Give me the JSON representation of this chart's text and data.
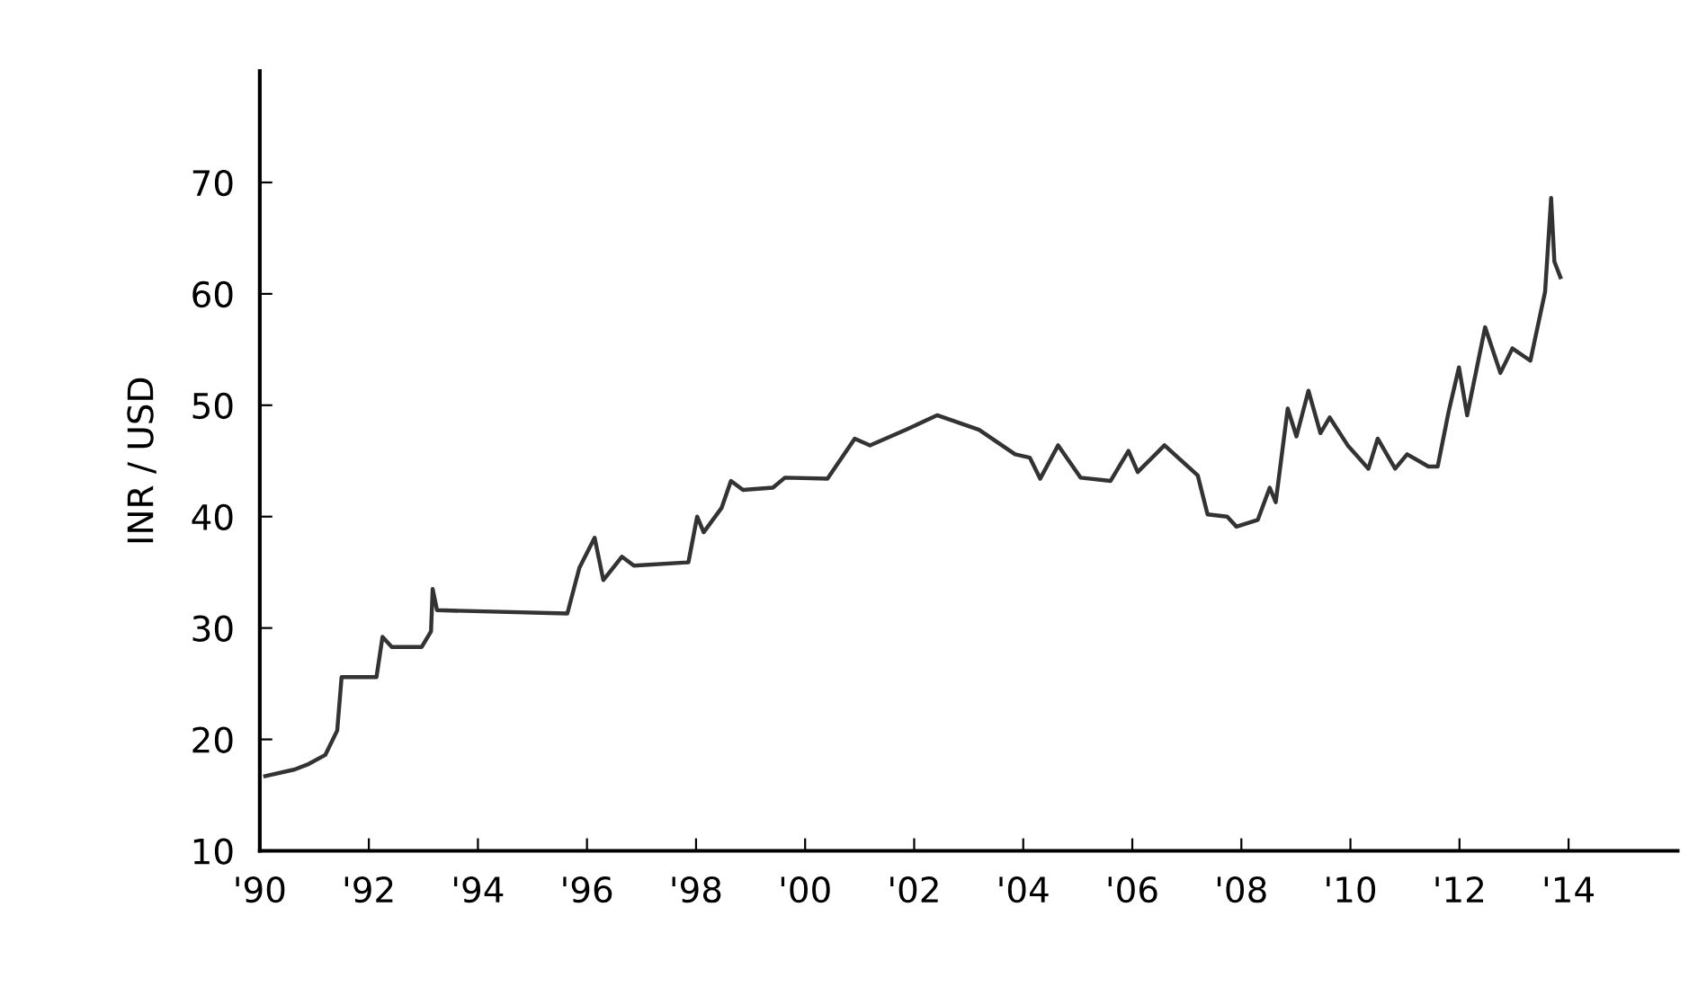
{
  "chart_data": {
    "type": "line",
    "ylabel": "INR / USD",
    "x": [
      1990.1,
      1990.64,
      1990.9,
      1991.2,
      1991.42,
      1991.5,
      1991.6,
      1992.14,
      1992.25,
      1992.42,
      1992.97,
      1993.14,
      1993.17,
      1993.25,
      1995.64,
      1995.86,
      1996.14,
      1996.3,
      1996.64,
      1996.86,
      1997.86,
      1998.02,
      1998.14,
      1998.47,
      1998.64,
      1998.86,
      1999.41,
      1999.63,
      2000.41,
      2000.91,
      2001.19,
      2001.85,
      2002.42,
      2003.19,
      2003.85,
      2004.12,
      2004.31,
      2004.64,
      2005.05,
      2005.6,
      2005.93,
      2006.1,
      2006.59,
      2007.2,
      2007.38,
      2007.74,
      2007.91,
      2008.3,
      2008.52,
      2008.63,
      2008.85,
      2009.01,
      2009.23,
      2009.45,
      2009.62,
      2009.95,
      2010.33,
      2010.5,
      2010.82,
      2011.04,
      2011.43,
      2011.6,
      2011.8,
      2011.99,
      2012.14,
      2012.47,
      2012.75,
      2012.97,
      2013.3,
      2013.57,
      2013.68,
      2013.74,
      2013.85
    ],
    "series": [
      {
        "color": "#333333",
        "values": [
          16.7,
          17.3,
          17.8,
          18.6,
          20.8,
          25.6,
          25.6,
          25.6,
          29.2,
          28.3,
          28.3,
          29.7,
          33.5,
          31.6,
          31.3,
          35.4,
          38.1,
          34.3,
          36.4,
          35.6,
          35.9,
          40.0,
          38.6,
          40.8,
          43.2,
          42.4,
          42.6,
          43.5,
          43.4,
          47.0,
          46.4,
          47.8,
          49.1,
          47.8,
          45.6,
          45.3,
          43.4,
          46.4,
          43.5,
          43.2,
          45.9,
          44.0,
          46.4,
          43.7,
          40.2,
          40.0,
          39.1,
          39.7,
          42.6,
          41.3,
          49.7,
          47.2,
          51.3,
          47.5,
          48.9,
          46.4,
          44.3,
          47.0,
          44.3,
          45.6,
          44.5,
          44.5,
          49.4,
          53.4,
          49.1,
          57.0,
          52.9,
          55.1,
          54.0,
          60.2,
          68.6,
          62.9,
          61.5
        ]
      }
    ],
    "xlim": [
      1990,
      2016
    ],
    "ylim": [
      10,
      80
    ],
    "xticks": [
      {
        "value": 1990,
        "label": "'90"
      },
      {
        "value": 1992,
        "label": "'92"
      },
      {
        "value": 1994,
        "label": "'94"
      },
      {
        "value": 1996,
        "label": "'96"
      },
      {
        "value": 1998,
        "label": "'98"
      },
      {
        "value": 2000,
        "label": "'00"
      },
      {
        "value": 2002,
        "label": "'02"
      },
      {
        "value": 2004,
        "label": "'04"
      },
      {
        "value": 2006,
        "label": "'06"
      },
      {
        "value": 2008,
        "label": "'08"
      },
      {
        "value": 2010,
        "label": "'10"
      },
      {
        "value": 2012,
        "label": "'12"
      },
      {
        "value": 2014,
        "label": "'14"
      }
    ],
    "yticks": [
      10,
      20,
      30,
      40,
      50,
      60,
      70
    ],
    "grid": false
  }
}
